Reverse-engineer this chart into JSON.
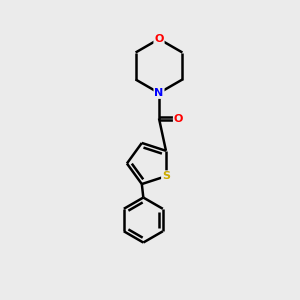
{
  "background_color": "#ebebeb",
  "bond_color": "#000000",
  "bond_width": 1.8,
  "atom_colors": {
    "O": "#ff0000",
    "N": "#0000ff",
    "S": "#ccaa00",
    "C": "#000000"
  },
  "font_size": 8,
  "figsize": [
    3.0,
    3.0
  ],
  "dpi": 100,
  "xlim": [
    0,
    10
  ],
  "ylim": [
    0,
    10
  ]
}
